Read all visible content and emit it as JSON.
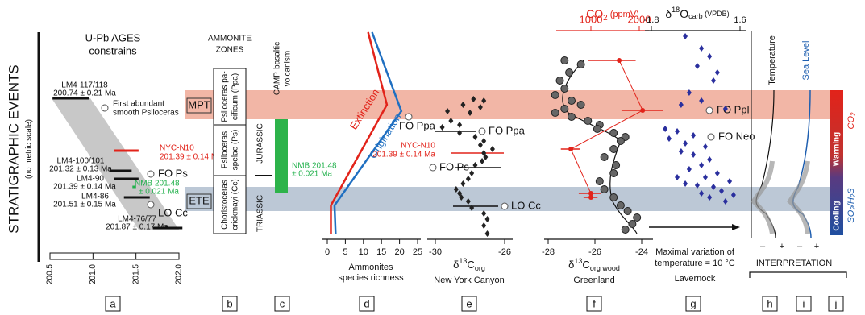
{
  "side_title": "STRATIGRAPHIC EVENTS",
  "side_subtitle": "(no metric scale)",
  "bands": {
    "upper": "MPT",
    "lower": "ETE"
  },
  "panel_letters": [
    "a",
    "b",
    "c",
    "d",
    "e",
    "f",
    "g",
    "h",
    "i",
    "j"
  ],
  "panel_a": {
    "title": [
      "U-Pb AGES",
      "constrains"
    ],
    "xlim": [
      200.5,
      202.0
    ],
    "xticks": [
      200.5,
      {
        "value": 201,
        "label": "201.0"
      },
      201.5,
      {
        "value": 202,
        "label": "202.0"
      }
    ],
    "ages": [
      {
        "sample": "LM4-117/118",
        "label": "200.74 ± 0.21 Ma",
        "age": 200.74,
        "err": 0.21,
        "height": 67.2,
        "color": "#111111"
      },
      {
        "sample": "NYC-N10",
        "label": "201.39 ± 0.14 Ma",
        "age": 201.39,
        "err": 0.14,
        "height": 41.2,
        "color": "#e2231a"
      },
      {
        "sample": "LM4-100/101",
        "label": "201.32 ± 0.13 Ma",
        "age": 201.32,
        "err": 0.13,
        "height": 31.2,
        "color": "#111111"
      },
      {
        "sample": "LM4-90",
        "label": "201.39 ± 0.14 Ma",
        "age": 201.39,
        "err": 0.14,
        "height": 27.2,
        "color": "#111111"
      },
      {
        "sample": "NMB 201.48",
        "label": "± 0.021 Ma",
        "age": 201.48,
        "err": 0.021,
        "height": 23.2,
        "color": "#22b14c"
      },
      {
        "sample": "LM4-86",
        "label": "201.51 ± 0.15 Ma",
        "age": 201.51,
        "err": 0.15,
        "height": 18,
        "color": "#111111"
      },
      {
        "sample": "LM4-76/77",
        "label": "201.87 ± 0.17 Ma",
        "age": 201.87,
        "err": 0.17,
        "height": 2.8,
        "color": "#111111"
      }
    ],
    "annotations": [
      "First abundant",
      "smooth Psiloceras",
      "FO Ps",
      "LO Cc"
    ]
  },
  "panel_b": {
    "title": [
      "AMMONITE",
      "ZONES"
    ],
    "zones": [
      [
        "Psiloceras pa-",
        "cificum (Ppa)"
      ],
      [
        "Psiloceras",
        "spelae (Ps)"
      ],
      [
        "Choristoceras",
        "crickmayi (Cc)"
      ]
    ]
  },
  "panel_c": {
    "title": [
      "CAMP-basaltic",
      "volcanism"
    ],
    "periods": [
      "JURASSIC",
      "TRIASSIC"
    ],
    "label": [
      "NMB 201.48",
      "± 0.021 Ma"
    ]
  },
  "panel_d": {
    "xlabel": [
      "Ammonites",
      "species richness"
    ],
    "xlim": [
      0,
      25
    ],
    "xticks": [
      0,
      5,
      10,
      15,
      20,
      25
    ],
    "series": [
      {
        "name": "Extinction",
        "color": "#e2231a",
        "values": [
          11.3,
          16.5,
          1,
          1
        ],
        "heights": [
          100,
          64,
          14,
          0
        ]
      },
      {
        "name": "Origination",
        "color": "#1f6fc1",
        "values": [
          12.4,
          20.5,
          2,
          2.3
        ],
        "heights": [
          100,
          60.8,
          14,
          0
        ]
      }
    ],
    "annotation": "FO Ppa"
  },
  "panel_e": {
    "xlabel": {
      "prefix": "δ",
      "sup": "13",
      "main": "C",
      "sub": "org"
    },
    "site": "New York Canyon",
    "xlim": [
      -30,
      -26
    ],
    "xticks": [
      -30,
      -26
    ],
    "annotations": [
      "FO Ppa",
      "FO Ps",
      "LO Cc"
    ],
    "marker": [
      "NYC-N10",
      "201.39 ± 0.14 Ma"
    ],
    "points": {
      "values": [
        -27.8,
        -27.2,
        -28.4,
        -27.4,
        -29.3,
        -28.0,
        -29.1,
        -28.6,
        -29.6,
        -28.6,
        -27.7,
        -27.2,
        -27.4,
        -26.7,
        -27.2,
        -27.1,
        -27.3,
        -27.7,
        -27.9,
        -28.1,
        -28.4,
        -28.8,
        -28.6,
        -28.5,
        -28.1,
        -27.9,
        -27.2,
        -27.0,
        -27.2,
        -27.0
      ],
      "heights": [
        66.8,
        66,
        64,
        62.8,
        60.8,
        60,
        56,
        54,
        52.8,
        50,
        48,
        46,
        44,
        42,
        40,
        38,
        36,
        34,
        30,
        27.2,
        24.8,
        22,
        20,
        18,
        16,
        12.8,
        10,
        7.2,
        4,
        0
      ]
    }
  },
  "panel_f": {
    "xlabel": {
      "prefix": "δ",
      "sup": "13",
      "main": "C",
      "sub": "org wood"
    },
    "site": "Greenland",
    "xlim": [
      -28,
      -23
    ],
    "xticks": [
      -28,
      -26,
      -24
    ],
    "co2_title": {
      "main": "CO",
      "sub": "2",
      "rest": " (ppmV)"
    },
    "co2_log": true,
    "co2_ticks": [
      1000,
      2000
    ],
    "points": {
      "values": [
        -27.3,
        -26.6,
        -27.1,
        -27.5,
        -27.3,
        -27.7,
        -27.0,
        -26.6,
        -27.3,
        -27.7,
        -27.0,
        -26.3,
        -25.8,
        -25.9,
        -25.2,
        -24.7,
        -24.9,
        -25.2,
        -25.6,
        -25.1,
        -25.2,
        -25.8,
        -25.6,
        -25.2,
        -24.9,
        -24.6,
        -24.2,
        -24.4,
        -24.7
      ],
      "heights": [
        86,
        84,
        80,
        76,
        72,
        68.8,
        66,
        64,
        62,
        60,
        58,
        56,
        54,
        52,
        50,
        48,
        46,
        42,
        38,
        34,
        30,
        26,
        22,
        18,
        14,
        11.2,
        8,
        4.8,
        2
      ]
    },
    "co2": {
      "color": "#e2231a",
      "values": [
        1500,
        2100,
        750,
        1000,
        1000
      ],
      "low": [
        960,
        1550,
        650,
        840,
        900
      ],
      "high": [
        1900,
        2800,
        860,
        1150,
        1100
      ],
      "heights": [
        86,
        61.2,
        42,
        20,
        18
      ]
    }
  },
  "panel_g": {
    "title": {
      "prefix": "δ",
      "sup": "18",
      "main": "O",
      "sub": "carb",
      "rest": " (VPDB)"
    },
    "xlim": [
      -1.8,
      1.6
    ],
    "xticks": [
      -1.8,
      1.6
    ],
    "annotations": [
      "FO Ppl",
      "FO Neo"
    ],
    "caption": [
      "Maximal variation of",
      "temperature = 10 °C",
      "Lavernock"
    ],
    "points": {
      "color": "#2a2f9e",
      "values": [
        -0.5,
        0.12,
        0.43,
        -0.04,
        0.73,
        0.58,
        -0.35,
        0.12,
        -0.66,
        1.04,
        -1.27,
        -0.81,
        -0.19,
        -1.12,
        -0.5,
        0.27,
        -0.66,
        -0.19,
        0.43,
        0.12,
        -0.35,
        0.73,
        0.27,
        1.2,
        -0.04,
        0.58,
        0.89,
        0.12,
        1.35,
        0.43,
        1.04,
        -0.81,
        -0.5
      ],
      "heights": [
        98,
        92,
        88,
        83.2,
        80,
        76,
        70,
        66,
        64,
        62,
        52,
        50.8,
        48.8,
        47.2,
        44.8,
        43.2,
        40.8,
        39.2,
        36.8,
        34,
        32,
        30,
        28,
        26,
        24,
        23.2,
        21.2,
        20,
        19.2,
        18,
        16,
        28,
        24.8
      ]
    }
  },
  "interpretation": {
    "title": "INTERPRETATION",
    "temperature": "Temperature",
    "sea_level": "Sea Level",
    "minus": "–",
    "plus": "+",
    "warming": "Warming",
    "cooling": "Cooling",
    "co2": {
      "main": "CO",
      "sub": "2"
    },
    "so2": {
      "a": "SO",
      "b": "2",
      "c": "/H",
      "d": "2",
      "e": "S"
    }
  }
}
